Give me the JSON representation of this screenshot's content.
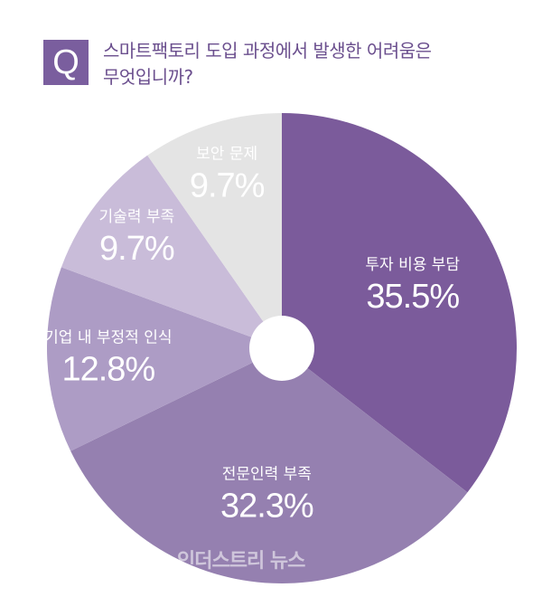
{
  "header": {
    "badge": "Q",
    "question_line1": "스마트팩토리 도입 과정에서 발생한 어려움은",
    "question_line2": "무엇입니까?"
  },
  "chart_data": {
    "type": "pie",
    "donut": true,
    "start_angle_deg": 0,
    "direction": "clockwise",
    "slices": [
      {
        "label": "투자 비용 부담",
        "value": 35.5,
        "value_label": "35.5%",
        "color": "#7b5b9b"
      },
      {
        "label": "전문인력 부족",
        "value": 32.3,
        "value_label": "32.3%",
        "color": "#9580b0"
      },
      {
        "label": "기업 내 부정적 인식",
        "value": 12.8,
        "value_label": "12.8%",
        "color": "#ad9cc5"
      },
      {
        "label": "기술력 부족",
        "value": 9.7,
        "value_label": "9.7%",
        "color": "#c9bcd9"
      },
      {
        "label": "보안 문제",
        "value": 9.7,
        "value_label": "9.7%",
        "color": "#e4e4e4"
      }
    ]
  },
  "watermark": "인더스트리 뉴스"
}
